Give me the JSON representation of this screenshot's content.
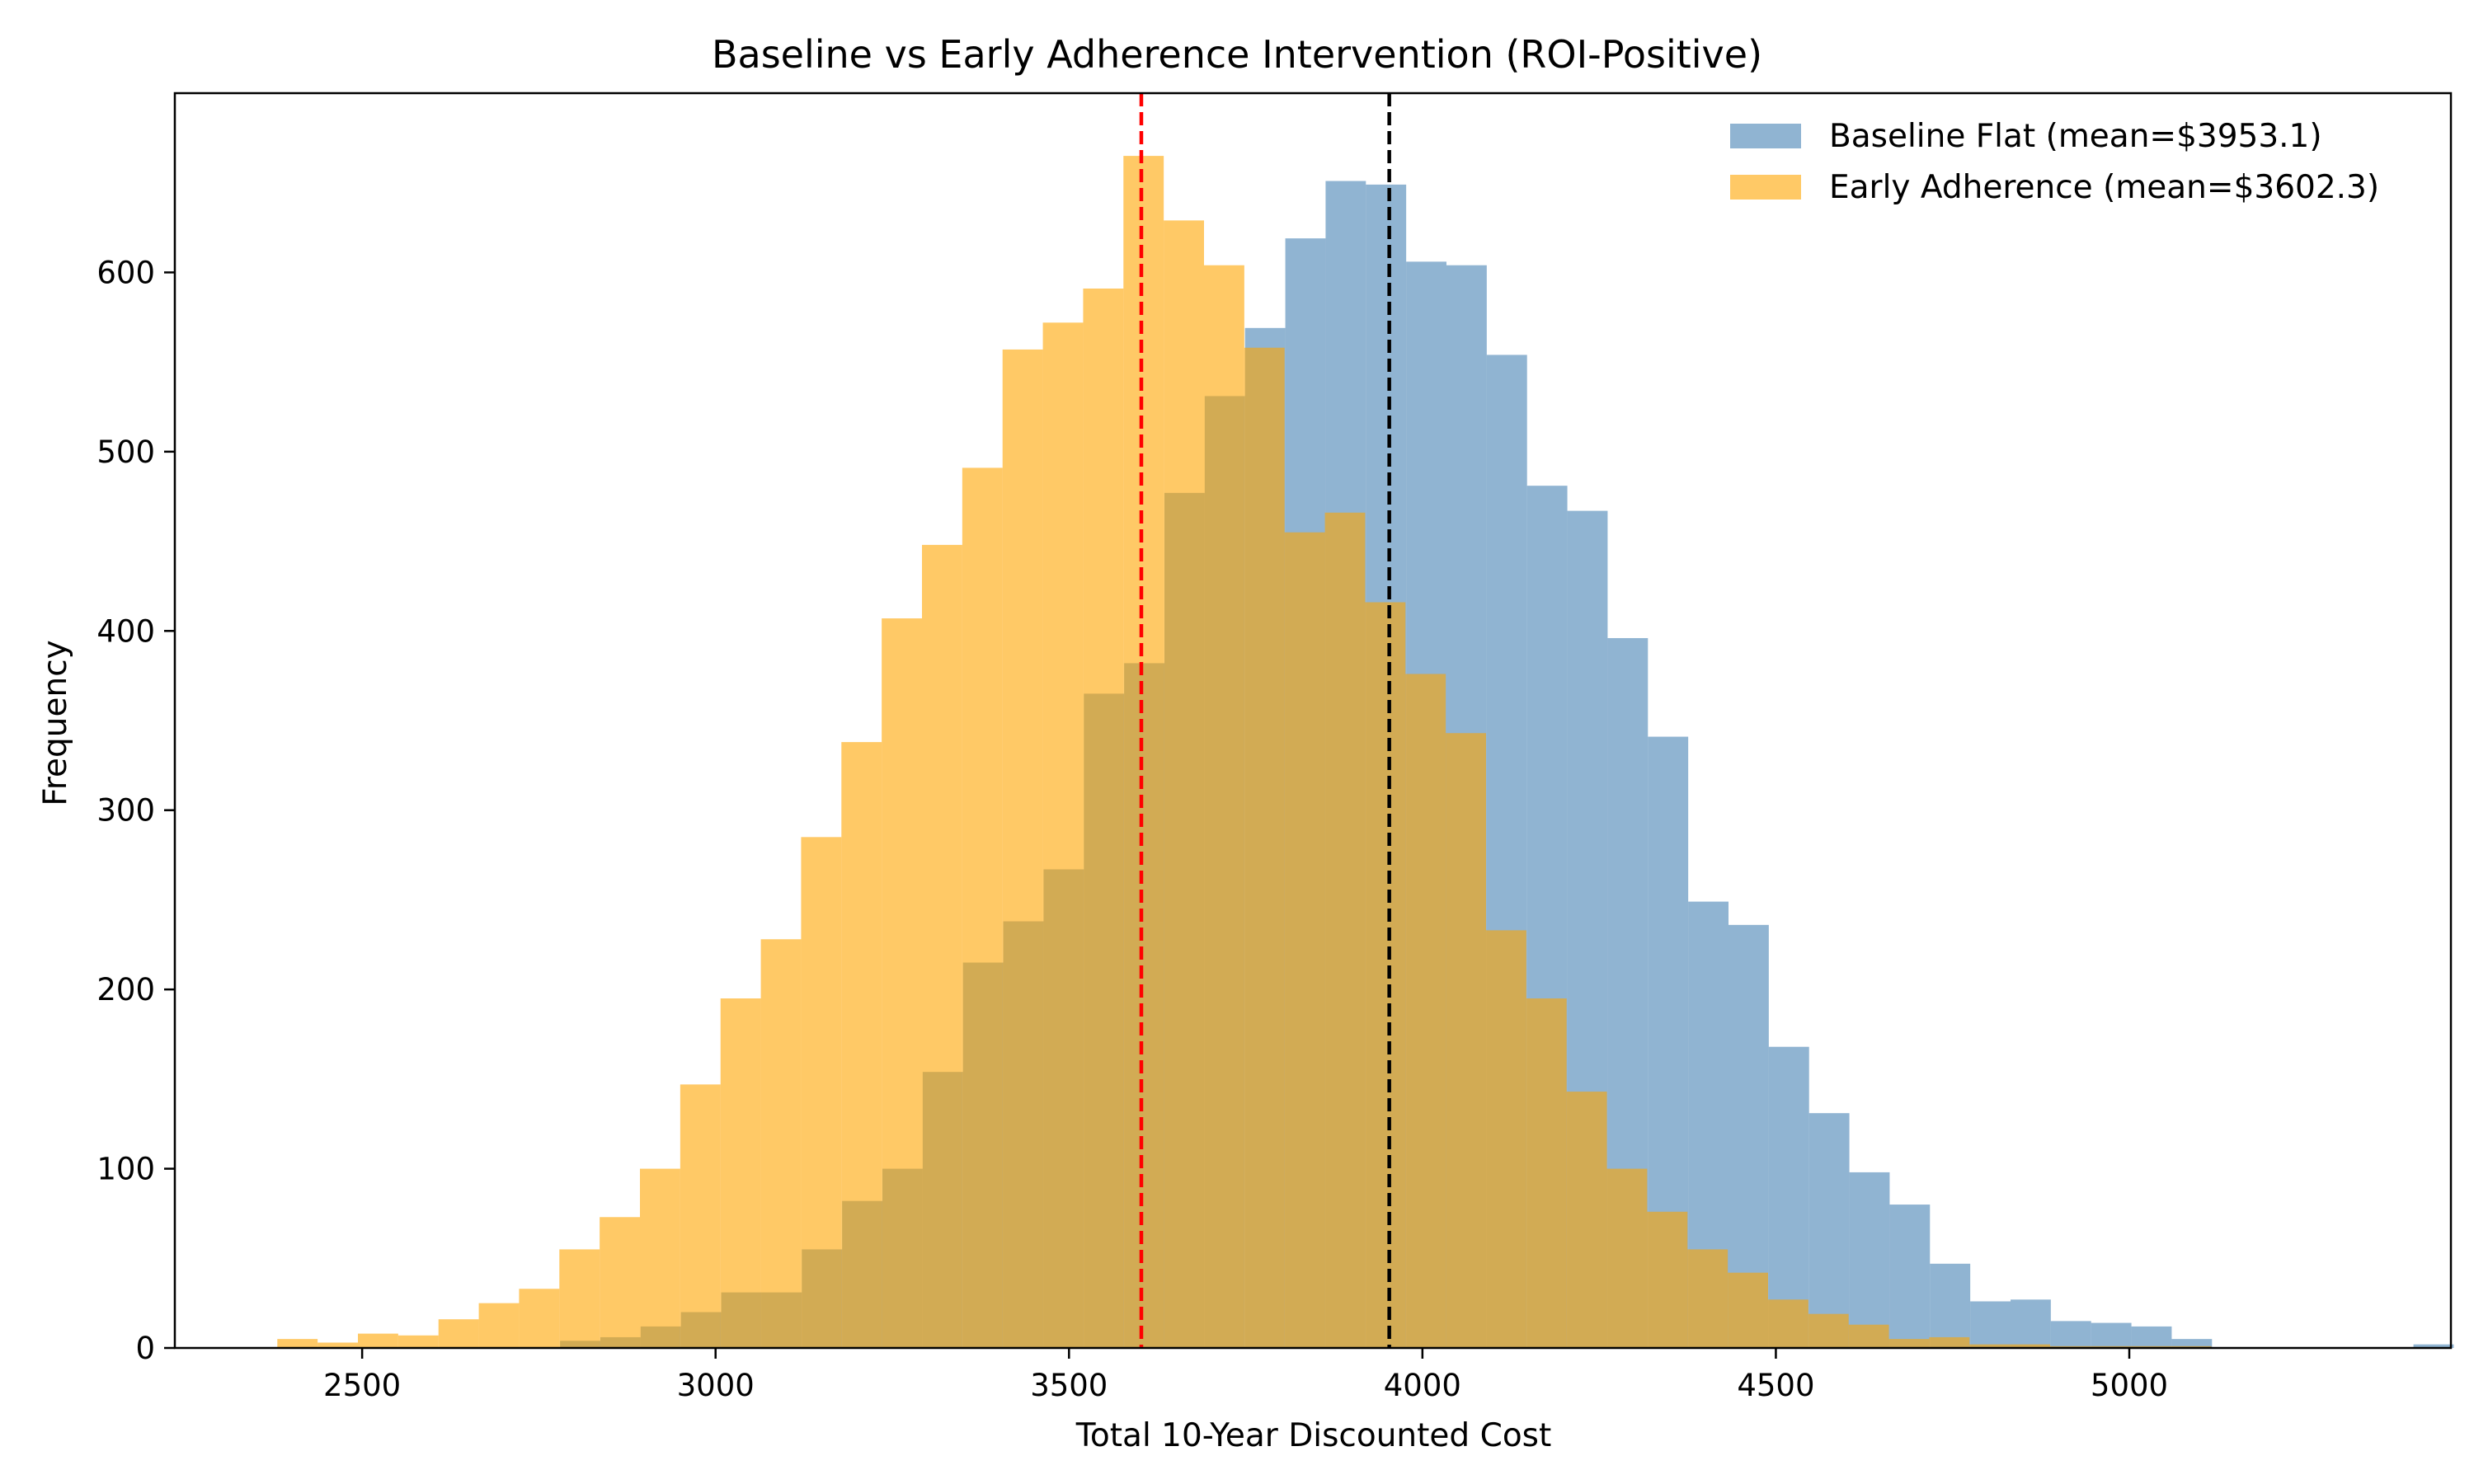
{
  "chart_data": {
    "type": "bar",
    "title": "Baseline vs Early Adherence Intervention (ROI-Positive)",
    "xlabel": "Total 10-Year Discounted Cost",
    "ylabel": "Frequency",
    "xlim": [
      2235,
      5455
    ],
    "ylim": [
      0,
      700
    ],
    "x_ticks": [
      2500,
      3000,
      3500,
      4000,
      4500,
      5000
    ],
    "y_ticks": [
      0,
      100,
      200,
      300,
      400,
      500,
      600
    ],
    "grid": false,
    "legend_position": "top-right",
    "series": [
      {
        "name": "Baseline Flat (mean=$3953.1)",
        "color": "#4682b4",
        "opacity": 0.6,
        "bin_width": 57,
        "bin_start": 2780,
        "values": [
          4,
          6,
          12,
          20,
          31,
          31,
          55,
          82,
          100,
          154,
          215,
          238,
          267,
          365,
          382,
          477,
          531,
          569,
          619,
          651,
          649,
          606,
          604,
          554,
          481,
          467,
          396,
          341,
          249,
          236,
          168,
          131,
          98,
          80,
          47,
          26,
          27,
          15,
          14,
          12,
          5,
          0,
          0,
          0,
          0,
          0,
          2
        ],
        "mean": 3953.1,
        "mean_line_color": "#000000"
      },
      {
        "name": "Early Adherence (mean=$3602.3)",
        "color": "#ffa500",
        "opacity": 0.6,
        "bin_width": 57,
        "bin_start": 2380,
        "values": [
          5,
          3,
          8,
          7,
          16,
          25,
          33,
          55,
          73,
          100,
          147,
          195,
          228,
          285,
          338,
          407,
          448,
          491,
          557,
          572,
          591,
          665,
          629,
          604,
          558,
          455,
          466,
          416,
          376,
          343,
          233,
          195,
          143,
          100,
          76,
          55,
          42,
          27,
          19,
          13,
          5,
          6,
          2,
          2,
          1,
          1,
          1,
          1
        ],
        "mean": 3602.3,
        "mean_line_color": "#ff0000"
      }
    ]
  }
}
